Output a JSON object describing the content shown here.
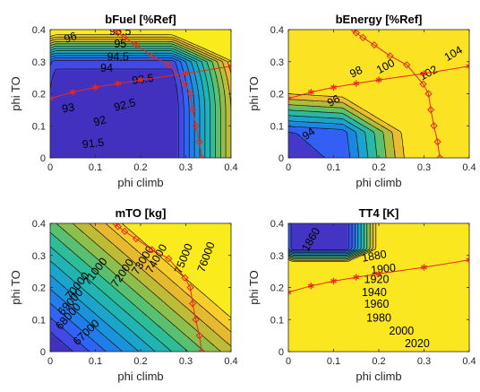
{
  "chart_data": [
    {
      "type": "contour",
      "title": "bFuel [%Ref]",
      "xlabel": "phi climb",
      "ylabel": "phi TO",
      "xlim": [
        0,
        0.4
      ],
      "ylim": [
        0,
        0.4
      ],
      "xticks": [
        "0",
        "0.1",
        "0.2",
        "0.3",
        "0.4"
      ],
      "yticks": [
        "0",
        "0.1",
        "0.2",
        "0.3",
        "0.4"
      ],
      "grid": false,
      "surface": {
        "base": 90.4,
        "cx": 0.14,
        "cy": 0.03,
        "ax": 0.13,
        "ay": 0.27,
        "wx": 4.2,
        "wy": 5.6,
        "axx": 0.1,
        "ayy": 0.11,
        "wxx": 6.0,
        "wyy": 32.0
      },
      "levels": [
        91,
        91.5,
        92,
        92.5,
        93,
        93.5,
        94,
        94.5,
        95,
        95.5,
        96,
        96.5,
        97
      ],
      "contour_labels": [
        {
          "text": "96",
          "x": 0.045,
          "y": 0.375,
          "angle": -20
        },
        {
          "text": "95.5",
          "x": 0.155,
          "y": 0.395,
          "angle": 0
        },
        {
          "text": "95",
          "x": 0.155,
          "y": 0.355,
          "angle": 0
        },
        {
          "text": "94.5",
          "x": 0.15,
          "y": 0.315,
          "angle": 0
        },
        {
          "text": "94",
          "x": 0.125,
          "y": 0.28,
          "angle": 0
        },
        {
          "text": "93.5",
          "x": 0.205,
          "y": 0.245,
          "angle": -8
        },
        {
          "text": "93",
          "x": 0.04,
          "y": 0.155,
          "angle": -10
        },
        {
          "text": "92.5",
          "x": 0.165,
          "y": 0.165,
          "angle": -14
        },
        {
          "text": "92",
          "x": 0.11,
          "y": 0.115,
          "angle": -16
        },
        {
          "text": "91.5",
          "x": 0.095,
          "y": 0.045,
          "angle": -6
        }
      ],
      "series": [
        {
          "name": "",
          "color": "#e8291c",
          "marker": "asterisk",
          "x": [
            0,
            0.05,
            0.1,
            0.15,
            0.2,
            0.3,
            0.4
          ],
          "y": [
            0.185,
            0.205,
            0.22,
            0.232,
            0.243,
            0.263,
            0.286
          ]
        },
        {
          "name": "",
          "color": "#e8291c",
          "marker": "diamond",
          "x": [
            0.145,
            0.15,
            0.165,
            0.19,
            0.225,
            0.262,
            0.298,
            0.31,
            0.315,
            0.322,
            0.33,
            0.335
          ],
          "y": [
            0.4,
            0.39,
            0.375,
            0.352,
            0.318,
            0.29,
            0.23,
            0.2,
            0.15,
            0.1,
            0.05,
            0.0
          ]
        }
      ]
    },
    {
      "type": "contour",
      "title": "bEnergy [%Ref]",
      "xlabel": "phi climb",
      "ylabel": "phi TO",
      "xlim": [
        0,
        0.4
      ],
      "ylim": [
        0,
        0.4
      ],
      "xticks": [
        "0",
        "0.1",
        "0.2",
        "0.3",
        "0.4"
      ],
      "yticks": [
        "0",
        "0.1",
        "0.2",
        "0.3",
        "0.4"
      ],
      "grid": false,
      "surface": {
        "base": 91.2,
        "lin": 18.0,
        "cx": 0.0,
        "cy": 0.0,
        "ax": 0.12,
        "ay": 0.08,
        "wx": 9.0,
        "wy": 11.0
      },
      "levels": [
        92,
        94,
        96,
        98,
        100,
        102,
        104,
        106
      ],
      "contour_labels": [
        {
          "text": "104",
          "x": 0.365,
          "y": 0.325,
          "angle": -30
        },
        {
          "text": "102",
          "x": 0.31,
          "y": 0.265,
          "angle": -28
        },
        {
          "text": "100",
          "x": 0.215,
          "y": 0.285,
          "angle": -28
        },
        {
          "text": "98",
          "x": 0.15,
          "y": 0.268,
          "angle": -26
        },
        {
          "text": "96",
          "x": 0.1,
          "y": 0.178,
          "angle": -28
        },
        {
          "text": "94",
          "x": 0.045,
          "y": 0.075,
          "angle": -36
        }
      ],
      "series": [
        {
          "name": "",
          "color": "#e8291c",
          "marker": "asterisk",
          "x": [
            0,
            0.05,
            0.1,
            0.15,
            0.2,
            0.3,
            0.4
          ],
          "y": [
            0.185,
            0.205,
            0.22,
            0.232,
            0.243,
            0.263,
            0.286
          ]
        },
        {
          "name": "",
          "color": "#e8291c",
          "marker": "diamond",
          "x": [
            0.145,
            0.15,
            0.165,
            0.19,
            0.225,
            0.262,
            0.298,
            0.31,
            0.315,
            0.322,
            0.33,
            0.335
          ],
          "y": [
            0.4,
            0.39,
            0.375,
            0.352,
            0.318,
            0.29,
            0.23,
            0.2,
            0.15,
            0.1,
            0.05,
            0.0
          ]
        }
      ]
    },
    {
      "type": "contour",
      "title": "mTO [kg]",
      "xlabel": "phi climb",
      "ylabel": "phi TO",
      "xlim": [
        0,
        0.4
      ],
      "ylim": [
        0,
        0.4
      ],
      "xticks": [
        "0",
        "0.1",
        "0.2",
        "0.3",
        "0.4"
      ],
      "yticks": [
        "0",
        "0.1",
        "0.2",
        "0.3",
        "0.4"
      ],
      "grid": false,
      "surface": {
        "base": 64600,
        "lin": 50000,
        "cx": 0.0,
        "cy": 0.0,
        "ax": 0.12,
        "ay": 0.08,
        "wx": 8.0,
        "wy": 11.0
      },
      "levels": [
        66000,
        67000,
        68000,
        69000,
        70000,
        71000,
        72000,
        73000,
        74000,
        75000,
        76000,
        77000,
        78000
      ],
      "contour_labels": [
        {
          "text": "76000",
          "x": 0.345,
          "y": 0.295,
          "angle": -70
        },
        {
          "text": "75000",
          "x": 0.295,
          "y": 0.29,
          "angle": -68
        },
        {
          "text": "74000",
          "x": 0.235,
          "y": 0.29,
          "angle": -60
        },
        {
          "text": "73000",
          "x": 0.205,
          "y": 0.285,
          "angle": -58
        },
        {
          "text": "72000",
          "x": 0.16,
          "y": 0.245,
          "angle": -56
        },
        {
          "text": "71000",
          "x": 0.1,
          "y": 0.25,
          "angle": -52
        },
        {
          "text": "70000",
          "x": 0.06,
          "y": 0.205,
          "angle": -52
        },
        {
          "text": "69000",
          "x": 0.045,
          "y": 0.155,
          "angle": -48
        },
        {
          "text": "68000",
          "x": 0.04,
          "y": 0.11,
          "angle": -48
        },
        {
          "text": "67000",
          "x": 0.08,
          "y": 0.06,
          "angle": -44
        }
      ],
      "series": [
        {
          "name": "",
          "color": "#e8291c",
          "marker": "diamond",
          "x": [
            0.145,
            0.15,
            0.165,
            0.19,
            0.225,
            0.262,
            0.298,
            0.31,
            0.315,
            0.322,
            0.33,
            0.335
          ],
          "y": [
            0.4,
            0.39,
            0.375,
            0.352,
            0.318,
            0.29,
            0.23,
            0.2,
            0.15,
            0.1,
            0.05,
            0.0
          ]
        }
      ]
    },
    {
      "type": "contour",
      "title": "TT4 [K]",
      "xlabel": "phi climb",
      "ylabel": "phi TO",
      "xlim": [
        0,
        0.4
      ],
      "ylim": [
        0,
        0.4
      ],
      "xticks": [
        "0",
        "0.1",
        "0.2",
        "0.3",
        "0.4"
      ],
      "yticks": [
        "0",
        "0.1",
        "0.2",
        "0.3",
        "0.4"
      ],
      "grid": false,
      "surface": {
        "base": 1848,
        "cx": 0.07,
        "cy": 0.365,
        "ax": 0.06,
        "ay": 0.045,
        "wx": 300.0,
        "wy": 480.0,
        "axx": 0.07,
        "ayy": 0.04,
        "wxx": 320.0,
        "wyy": 1350.0
      },
      "levels": [
        1860,
        1880,
        1900,
        1920,
        1940,
        1960,
        1980,
        2000,
        2020,
        2040
      ],
      "contour_labels": [
        {
          "text": "1860",
          "x": 0.05,
          "y": 0.35,
          "angle": -60
        },
        {
          "text": "1880",
          "x": 0.19,
          "y": 0.298,
          "angle": -10
        },
        {
          "text": "1900",
          "x": 0.21,
          "y": 0.258,
          "angle": -6
        },
        {
          "text": "1920",
          "x": 0.195,
          "y": 0.225,
          "angle": 0
        },
        {
          "text": "1940",
          "x": 0.19,
          "y": 0.185,
          "angle": 0
        },
        {
          "text": "1960",
          "x": 0.195,
          "y": 0.148,
          "angle": 0
        },
        {
          "text": "1980",
          "x": 0.2,
          "y": 0.105,
          "angle": 0
        },
        {
          "text": "2000",
          "x": 0.25,
          "y": 0.065,
          "angle": 0
        },
        {
          "text": "2020",
          "x": 0.285,
          "y": 0.025,
          "angle": 0
        }
      ],
      "series": [
        {
          "name": "",
          "color": "#e8291c",
          "marker": "asterisk",
          "x": [
            0,
            0.05,
            0.1,
            0.15,
            0.2,
            0.3,
            0.4
          ],
          "y": [
            0.185,
            0.205,
            0.22,
            0.232,
            0.243,
            0.263,
            0.286
          ]
        }
      ]
    }
  ],
  "colormap": [
    "#3e26a8",
    "#4743e0",
    "#2e65f8",
    "#1b85e5",
    "#199fd4",
    "#20b2b7",
    "#2fbe95",
    "#6cc160",
    "#b0bd3a",
    "#e6b82f",
    "#fcd22a",
    "#f9fb15"
  ]
}
